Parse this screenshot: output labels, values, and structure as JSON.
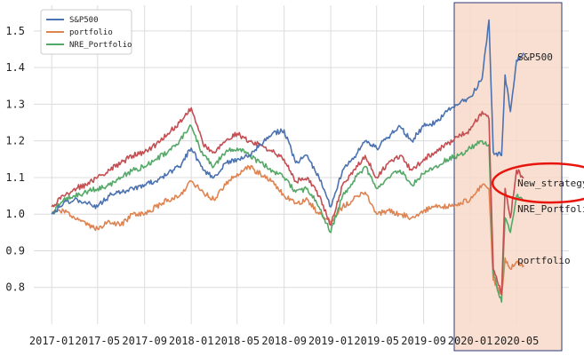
{
  "chart_data": {
    "type": "line",
    "title": "",
    "xlabel": "",
    "ylabel": "",
    "x_ticks": [
      "2017-01",
      "2017-05",
      "2017-09",
      "2018-01",
      "2018-05",
      "2018-09",
      "2019-01",
      "2019-05",
      "2019-09",
      "2020-01",
      "2020-05"
    ],
    "y_ticks": [
      "0.8",
      "0.9",
      "1.0",
      "1.1",
      "1.2",
      "1.3",
      "1.4",
      "1.5"
    ],
    "xlim": [
      "2016-11-15",
      "2020-09-15"
    ],
    "ylim": [
      0.7,
      1.57
    ],
    "grid": true,
    "legend_position": "top-left",
    "colors": {
      "sp500": "#4c72b0",
      "portfolio": "#dd8452",
      "nre": "#55a868",
      "new_strategy": "#c44e52",
      "highlight_fill": "#f7d9c9",
      "highlight_border": "#2b3a7a",
      "circle": "#e8150e"
    },
    "series": [
      {
        "name": "S&P500",
        "key": "sp500",
        "points": [
          [
            "2017-01",
            1.0
          ],
          [
            "2017-02",
            1.03
          ],
          [
            "2017-03",
            1.04
          ],
          [
            "2017-04",
            1.03
          ],
          [
            "2017-05",
            1.02
          ],
          [
            "2017-06",
            1.05
          ],
          [
            "2017-07",
            1.06
          ],
          [
            "2017-08",
            1.07
          ],
          [
            "2017-09",
            1.08
          ],
          [
            "2017-10",
            1.09
          ],
          [
            "2017-11",
            1.11
          ],
          [
            "2017-12",
            1.13
          ],
          [
            "2018-01",
            1.18
          ],
          [
            "2018-02",
            1.12
          ],
          [
            "2018-03",
            1.1
          ],
          [
            "2018-04",
            1.14
          ],
          [
            "2018-05",
            1.15
          ],
          [
            "2018-06",
            1.16
          ],
          [
            "2018-07",
            1.19
          ],
          [
            "2018-08",
            1.22
          ],
          [
            "2018-09",
            1.23
          ],
          [
            "2018-10",
            1.14
          ],
          [
            "2018-11",
            1.16
          ],
          [
            "2018-12",
            1.1
          ],
          [
            "2019-01",
            1.02
          ],
          [
            "2019-02",
            1.12
          ],
          [
            "2019-03",
            1.15
          ],
          [
            "2019-04",
            1.2
          ],
          [
            "2019-05",
            1.18
          ],
          [
            "2019-06",
            1.21
          ],
          [
            "2019-07",
            1.24
          ],
          [
            "2019-08",
            1.2
          ],
          [
            "2019-09",
            1.24
          ],
          [
            "2019-10",
            1.25
          ],
          [
            "2019-11",
            1.28
          ],
          [
            "2019-12",
            1.3
          ],
          [
            "2020-01",
            1.32
          ],
          [
            "2020-02",
            1.37
          ],
          [
            "2020-02-19",
            1.53
          ],
          [
            "2020-03",
            1.17
          ],
          [
            "2020-03-23",
            1.16
          ],
          [
            "2020-04",
            1.38
          ],
          [
            "2020-04-15",
            1.28
          ],
          [
            "2020-05",
            1.42
          ],
          [
            "2020-05-20",
            1.44
          ]
        ]
      },
      {
        "name": "portfolio",
        "key": "portfolio",
        "points": [
          [
            "2017-01",
            1.0
          ],
          [
            "2017-02",
            1.01
          ],
          [
            "2017-03",
            0.99
          ],
          [
            "2017-04",
            0.97
          ],
          [
            "2017-05",
            0.96
          ],
          [
            "2017-06",
            0.98
          ],
          [
            "2017-07",
            0.97
          ],
          [
            "2017-08",
            1.0
          ],
          [
            "2017-09",
            1.0
          ],
          [
            "2017-10",
            1.02
          ],
          [
            "2017-11",
            1.04
          ],
          [
            "2017-12",
            1.05
          ],
          [
            "2018-01",
            1.09
          ],
          [
            "2018-02",
            1.06
          ],
          [
            "2018-03",
            1.04
          ],
          [
            "2018-04",
            1.08
          ],
          [
            "2018-05",
            1.11
          ],
          [
            "2018-06",
            1.13
          ],
          [
            "2018-07",
            1.11
          ],
          [
            "2018-08",
            1.09
          ],
          [
            "2018-09",
            1.05
          ],
          [
            "2018-10",
            1.03
          ],
          [
            "2018-11",
            1.04
          ],
          [
            "2018-12",
            1.0
          ],
          [
            "2019-01",
            0.98
          ],
          [
            "2019-02",
            1.02
          ],
          [
            "2019-03",
            1.04
          ],
          [
            "2019-04",
            1.06
          ],
          [
            "2019-05",
            1.0
          ],
          [
            "2019-06",
            1.01
          ],
          [
            "2019-07",
            1.0
          ],
          [
            "2019-08",
            0.99
          ],
          [
            "2019-09",
            1.01
          ],
          [
            "2019-10",
            1.02
          ],
          [
            "2019-11",
            1.02
          ],
          [
            "2019-12",
            1.03
          ],
          [
            "2020-01",
            1.04
          ],
          [
            "2020-02",
            1.08
          ],
          [
            "2020-02-19",
            1.07
          ],
          [
            "2020-03",
            0.82
          ],
          [
            "2020-03-23",
            0.78
          ],
          [
            "2020-04",
            0.88
          ],
          [
            "2020-04-15",
            0.85
          ],
          [
            "2020-05",
            0.87
          ],
          [
            "2020-05-20",
            0.86
          ]
        ]
      },
      {
        "name": "NRE_Portfolio",
        "key": "nre",
        "points": [
          [
            "2017-01",
            1.0
          ],
          [
            "2017-02",
            1.04
          ],
          [
            "2017-03",
            1.05
          ],
          [
            "2017-04",
            1.06
          ],
          [
            "2017-05",
            1.07
          ],
          [
            "2017-06",
            1.08
          ],
          [
            "2017-07",
            1.1
          ],
          [
            "2017-08",
            1.12
          ],
          [
            "2017-09",
            1.13
          ],
          [
            "2017-10",
            1.15
          ],
          [
            "2017-11",
            1.17
          ],
          [
            "2017-12",
            1.2
          ],
          [
            "2018-01",
            1.24
          ],
          [
            "2018-02",
            1.16
          ],
          [
            "2018-03",
            1.13
          ],
          [
            "2018-04",
            1.17
          ],
          [
            "2018-05",
            1.18
          ],
          [
            "2018-06",
            1.16
          ],
          [
            "2018-07",
            1.14
          ],
          [
            "2018-08",
            1.12
          ],
          [
            "2018-09",
            1.1
          ],
          [
            "2018-10",
            1.06
          ],
          [
            "2018-11",
            1.07
          ],
          [
            "2018-12",
            1.02
          ],
          [
            "2019-01",
            0.95
          ],
          [
            "2019-02",
            1.05
          ],
          [
            "2019-03",
            1.09
          ],
          [
            "2019-04",
            1.13
          ],
          [
            "2019-05",
            1.07
          ],
          [
            "2019-06",
            1.1
          ],
          [
            "2019-07",
            1.12
          ],
          [
            "2019-08",
            1.08
          ],
          [
            "2019-09",
            1.11
          ],
          [
            "2019-10",
            1.13
          ],
          [
            "2019-11",
            1.15
          ],
          [
            "2019-12",
            1.16
          ],
          [
            "2020-01",
            1.18
          ],
          [
            "2020-02",
            1.2
          ],
          [
            "2020-02-19",
            1.19
          ],
          [
            "2020-03",
            0.84
          ],
          [
            "2020-03-23",
            0.76
          ],
          [
            "2020-04",
            0.99
          ],
          [
            "2020-04-15",
            0.95
          ],
          [
            "2020-05",
            1.05
          ],
          [
            "2020-05-20",
            1.04
          ]
        ]
      },
      {
        "name": "New_strategy",
        "key": "new_strategy",
        "points": [
          [
            "2017-01",
            1.02
          ],
          [
            "2017-02",
            1.05
          ],
          [
            "2017-03",
            1.07
          ],
          [
            "2017-04",
            1.08
          ],
          [
            "2017-05",
            1.1
          ],
          [
            "2017-06",
            1.12
          ],
          [
            "2017-07",
            1.14
          ],
          [
            "2017-08",
            1.16
          ],
          [
            "2017-09",
            1.17
          ],
          [
            "2017-10",
            1.19
          ],
          [
            "2017-11",
            1.22
          ],
          [
            "2017-12",
            1.25
          ],
          [
            "2018-01",
            1.29
          ],
          [
            "2018-02",
            1.19
          ],
          [
            "2018-03",
            1.17
          ],
          [
            "2018-04",
            1.2
          ],
          [
            "2018-05",
            1.22
          ],
          [
            "2018-06",
            1.2
          ],
          [
            "2018-07",
            1.19
          ],
          [
            "2018-08",
            1.17
          ],
          [
            "2018-09",
            1.15
          ],
          [
            "2018-10",
            1.09
          ],
          [
            "2018-11",
            1.1
          ],
          [
            "2018-12",
            1.05
          ],
          [
            "2019-01",
            0.97
          ],
          [
            "2019-02",
            1.08
          ],
          [
            "2019-03",
            1.12
          ],
          [
            "2019-04",
            1.16
          ],
          [
            "2019-05",
            1.1
          ],
          [
            "2019-06",
            1.14
          ],
          [
            "2019-07",
            1.16
          ],
          [
            "2019-08",
            1.12
          ],
          [
            "2019-09",
            1.15
          ],
          [
            "2019-10",
            1.17
          ],
          [
            "2019-11",
            1.19
          ],
          [
            "2019-12",
            1.21
          ],
          [
            "2020-01",
            1.23
          ],
          [
            "2020-02",
            1.28
          ],
          [
            "2020-02-19",
            1.26
          ],
          [
            "2020-03",
            0.85
          ],
          [
            "2020-03-23",
            0.78
          ],
          [
            "2020-04",
            1.07
          ],
          [
            "2020-04-15",
            0.99
          ],
          [
            "2020-05",
            1.12
          ],
          [
            "2020-05-20",
            1.1
          ]
        ]
      }
    ],
    "legend": [
      "S&P500",
      "portfolio",
      "NRE_Portfolio"
    ],
    "annotations": [
      {
        "text": "S&P500",
        "date": "2020-05-01",
        "y": 1.43
      },
      {
        "text": "New_strategy",
        "date": "2020-05-01",
        "y": 1.085
      },
      {
        "text": "NRE_Portfolio",
        "date": "2020-05-01",
        "y": 1.015
      },
      {
        "text": "portfolio",
        "date": "2020-05-01",
        "y": 0.875
      }
    ],
    "highlight_range": [
      "2019-11-20",
      "2020-09-15"
    ]
  }
}
